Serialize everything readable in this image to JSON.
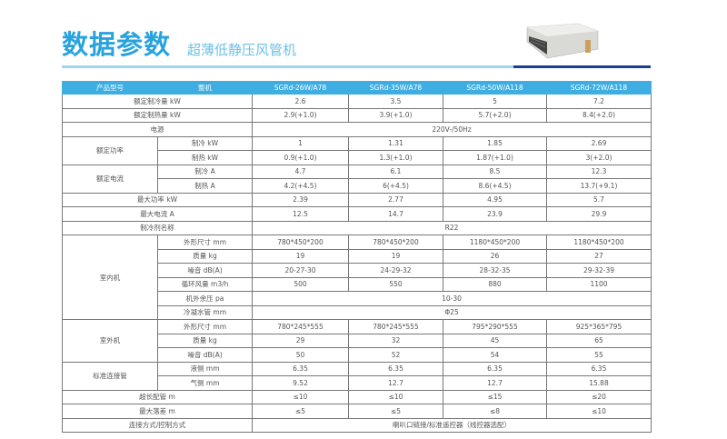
{
  "header": {
    "title": "数据参数",
    "subtitle": "超薄低静压风管机"
  },
  "table": {
    "columns": [
      "产品型号",
      "整机",
      "SGRd-26W/A78",
      "SGRd-35W/A78",
      "SGRd-50W/A118",
      "SGRd-72W/A118"
    ],
    "rows": [
      {
        "label": "额定制冷量 kW",
        "values": [
          "2.6",
          "3.5",
          "5",
          "7.2"
        ]
      },
      {
        "label": "额定制热量 kW",
        "values": [
          "2.9(+1.0)",
          "3.9(+1.0)",
          "5.7(+2.0)",
          "8.4(+2.0)"
        ]
      },
      {
        "label": "电源",
        "merged": "220V-/50Hz"
      },
      {
        "group": "额定功率",
        "subs": [
          {
            "label": "制冷 kW",
            "values": [
              "1",
              "1.31",
              "1.85",
              "2.69"
            ]
          },
          {
            "label": "制热 kW",
            "values": [
              "0.9(+1.0)",
              "1.3(+1.0)",
              "1.87(+1.0)",
              "3(+2.0)"
            ]
          }
        ]
      },
      {
        "group": "额定电流",
        "subs": [
          {
            "label": "制冷 A",
            "values": [
              "4.7",
              "6.1",
              "8.5",
              "12.3"
            ]
          },
          {
            "label": "制热 A",
            "values": [
              "4.2(+4.5)",
              "6(+4.5)",
              "8.6(+4.5)",
              "13.7(+9.1)"
            ]
          }
        ]
      },
      {
        "label": "最大功率 kW",
        "values": [
          "2.39",
          "2.77",
          "4.95",
          "5.7"
        ]
      },
      {
        "label": "最大电流 A",
        "values": [
          "12.5",
          "14.7",
          "23.9",
          "29.9"
        ]
      },
      {
        "label": "制冷剂名称",
        "merged": "R22"
      },
      {
        "group": "室内机",
        "subs": [
          {
            "label": "外形尺寸 mm",
            "values": [
              "780*450*200",
              "780*450*200",
              "1180*450*200",
              "1180*450*200"
            ]
          },
          {
            "label": "质量 kg",
            "values": [
              "19",
              "19",
              "26",
              "27"
            ]
          },
          {
            "label": "噪音 dB(A)",
            "values": [
              "20-27-30",
              "24-29-32",
              "28-32-35",
              "29-32-39"
            ]
          },
          {
            "label": "循环风量 m3/h",
            "values": [
              "500",
              "550",
              "880",
              "1100"
            ]
          },
          {
            "label": "机外余压 pa",
            "merged": "10-30"
          },
          {
            "label": "冷凝水管 mm",
            "merged": "Φ25"
          }
        ]
      },
      {
        "group": "室外机",
        "subs": [
          {
            "label": "外形尺寸 mm",
            "values": [
              "780*245*555",
              "780*245*555",
              "795*290*555",
              "925*365*795"
            ]
          },
          {
            "label": "质量 kg",
            "values": [
              "29",
              "32",
              "45",
              "65"
            ]
          },
          {
            "label": "噪音 dB(A)",
            "values": [
              "50",
              "52",
              "54",
              "55"
            ]
          }
        ]
      },
      {
        "group": "标准连接管",
        "subs": [
          {
            "label": "液侧 mm",
            "values": [
              "6.35",
              "6.35",
              "6.35",
              "6.35"
            ]
          },
          {
            "label": "气侧 mm",
            "values": [
              "9.52",
              "12.7",
              "12.7",
              "15.88"
            ]
          }
        ]
      },
      {
        "label": "超长配管 m",
        "values": [
          "≤10",
          "≤10",
          "≤15",
          "≤20"
        ]
      },
      {
        "label": "最大落差 m",
        "values": [
          "≤5",
          "≤5",
          "≤8",
          "≤10"
        ]
      },
      {
        "label": "连接方式/控制方式",
        "merged": "喇叭口链接/标准遥控器（线控器选配）"
      }
    ]
  },
  "colors": {
    "title": "#2aa3dc",
    "header_bg": "#3eaee2",
    "accent_dark": "#1e3d8c"
  }
}
